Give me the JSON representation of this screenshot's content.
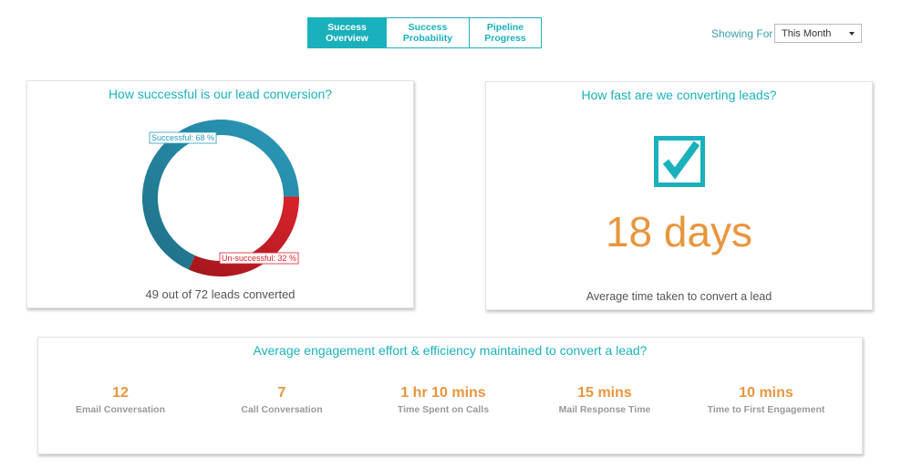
{
  "tabs": [
    {
      "label": "Success\nOverview",
      "active": true
    },
    {
      "label": "Success\nProbability",
      "active": false
    },
    {
      "label": "Pipeline\nProgress",
      "active": false
    }
  ],
  "filter": {
    "label": "Showing For",
    "selected": "This Month"
  },
  "conversion": {
    "title": "How successful is our lead conversion?",
    "caption": "49 out of 72 leads converted",
    "chart_data": {
      "type": "pie",
      "categories": [
        "Successful",
        "Un-successful"
      ],
      "values": [
        68,
        32
      ],
      "labels": [
        "Successful: 68 %",
        "Un-successful: 32 %"
      ],
      "colors": [
        "#2a9bbb",
        "#d9232b"
      ]
    }
  },
  "speed": {
    "title": "How fast are we converting leads?",
    "value": "18 days",
    "caption": "Average time taken to convert a lead",
    "icon": "checkbox-checked-icon"
  },
  "engagement": {
    "title": "Average engagement effort & efficiency maintained to convert a lead?",
    "metrics": [
      {
        "value": "12",
        "label": "Email Conversation"
      },
      {
        "value": "7",
        "label": "Call Conversation"
      },
      {
        "value": "1 hr 10 mins",
        "label": "Time Spent on Calls"
      },
      {
        "value": "15 mins",
        "label": "Mail Response Time"
      },
      {
        "value": "10 mins",
        "label": "Time to First Engagement"
      }
    ]
  },
  "colors": {
    "accent": "#1ab1bc",
    "highlight": "#e8963e"
  }
}
